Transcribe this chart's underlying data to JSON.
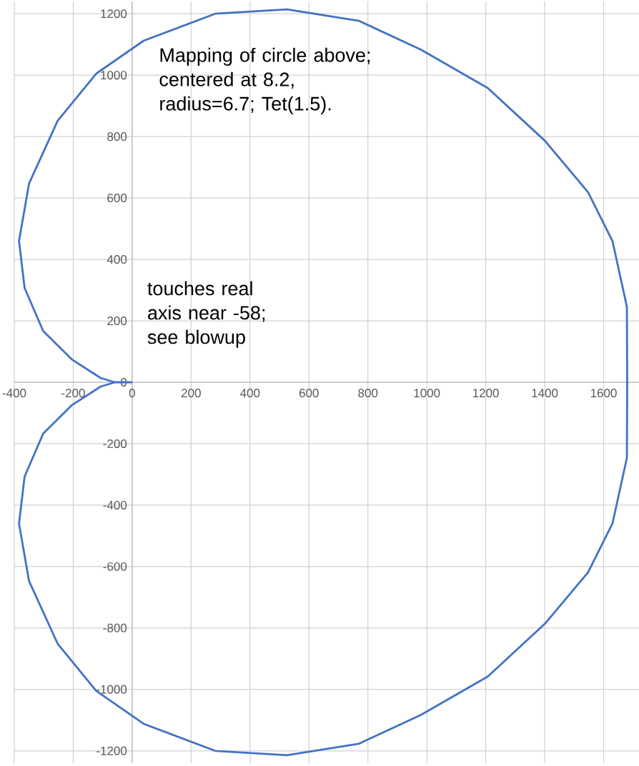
{
  "chart_data": {
    "type": "line",
    "color": "#4472c4",
    "marker": "none",
    "line_style": "solid",
    "grid": true,
    "annotations": [
      "Mapping of circle above;\ncentered at 8.2,\nradius=6.7; Tet(1.5).",
      "touches real\naxis near -58;\nsee blowup"
    ],
    "xlim": [
      -400,
      1720
    ],
    "ylim": [
      -1240,
      1240
    ],
    "xticks": [
      -400,
      -200,
      0,
      200,
      400,
      600,
      800,
      1000,
      1200,
      1400,
      1600
    ],
    "yticks": [
      -1200,
      -1000,
      -800,
      -600,
      -400,
      -200,
      0,
      200,
      400,
      600,
      800,
      1000,
      1200
    ],
    "x": [
      0,
      -58,
      -107,
      -204,
      -302,
      -365,
      -384,
      -350,
      -253,
      -122,
      39,
      282,
      526,
      769,
      980,
      1207,
      1401,
      1547,
      1630,
      1679,
      1680,
      1679,
      1630,
      1547,
      1401,
      1207,
      980,
      769,
      526,
      282,
      39,
      -122,
      -253,
      -350,
      -384,
      -365,
      -302,
      -204,
      -107,
      -58
    ],
    "values": [
      0,
      0,
      -14,
      -74,
      -167,
      -307,
      -460,
      -647,
      -851,
      -1005,
      -1112,
      -1200,
      -1214,
      -1177,
      -1083,
      -958,
      -786,
      -619,
      -460,
      -246,
      0,
      246,
      460,
      619,
      786,
      958,
      1083,
      1177,
      1214,
      1200,
      1112,
      1005,
      851,
      647,
      460,
      307,
      167,
      74,
      14,
      0
    ]
  }
}
